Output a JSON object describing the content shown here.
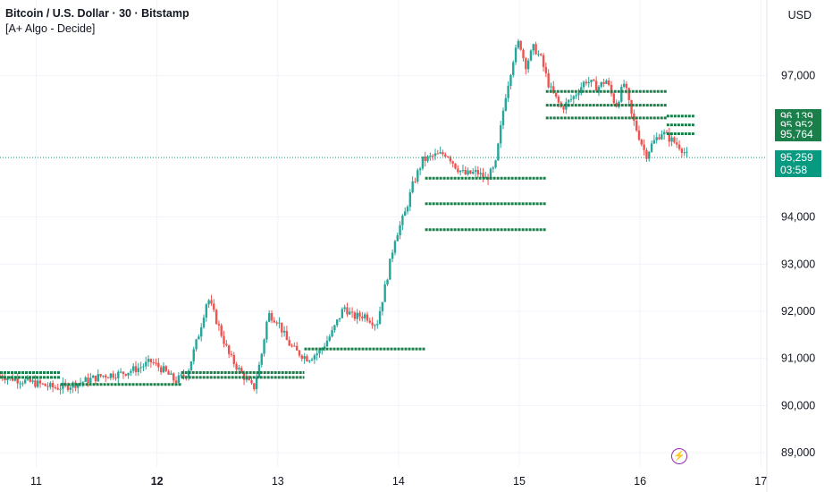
{
  "header": {
    "title": "Bitcoin / U.S. Dollar · 30 · Bitstamp",
    "indicator": "[A+ Algo - Decide]",
    "currency": "USD"
  },
  "colors": {
    "up": "#26a69a",
    "down": "#ef5350",
    "level": "#1b7f4b",
    "last_price": "#089981",
    "grid": "#f0f3fa",
    "text": "#131722"
  },
  "icons": [
    "flash-icon"
  ],
  "chart_data": {
    "type": "candlestick",
    "title": "Bitcoin / U.S. Dollar · 30 · Bitstamp",
    "x_ticks": [
      "11",
      "12",
      "13",
      "14",
      "15",
      "16",
      "17"
    ],
    "y_ticks": [
      "89,000",
      "90,000",
      "91,000",
      "92,000",
      "93,000",
      "94,000",
      "97,000"
    ],
    "ylim": [
      88700,
      98600
    ],
    "xlim": [
      10.7,
      17.05
    ],
    "last_price": {
      "value": "95,259",
      "countdown": "03:58"
    },
    "level_tags": [
      "96,139",
      "95,952",
      "95,764"
    ],
    "price_path": [
      [
        10.7,
        90640
      ],
      [
        10.85,
        90550
      ],
      [
        11.0,
        90470
      ],
      [
        11.15,
        90380
      ],
      [
        11.25,
        90410
      ],
      [
        11.4,
        90520
      ],
      [
        11.55,
        90640
      ],
      [
        11.7,
        90680
      ],
      [
        11.85,
        90800
      ],
      [
        11.95,
        90930
      ],
      [
        12.05,
        90760
      ],
      [
        12.15,
        90520
      ],
      [
        12.25,
        90680
      ],
      [
        12.35,
        91550
      ],
      [
        12.42,
        92300
      ],
      [
        12.5,
        91750
      ],
      [
        12.6,
        91050
      ],
      [
        12.7,
        90680
      ],
      [
        12.8,
        90350
      ],
      [
        12.86,
        91000
      ],
      [
        12.92,
        91950
      ],
      [
        13.0,
        91800
      ],
      [
        13.08,
        91350
      ],
      [
        13.15,
        91150
      ],
      [
        13.25,
        91000
      ],
      [
        13.35,
        91150
      ],
      [
        13.45,
        91550
      ],
      [
        13.55,
        92100
      ],
      [
        13.62,
        91880
      ],
      [
        13.72,
        91920
      ],
      [
        13.82,
        91720
      ],
      [
        13.9,
        92650
      ],
      [
        13.97,
        93550
      ],
      [
        14.05,
        94050
      ],
      [
        14.12,
        94700
      ],
      [
        14.2,
        95200
      ],
      [
        14.3,
        95300
      ],
      [
        14.4,
        95350
      ],
      [
        14.48,
        95050
      ],
      [
        14.55,
        94900
      ],
      [
        14.65,
        94950
      ],
      [
        14.72,
        94800
      ],
      [
        14.8,
        95050
      ],
      [
        14.88,
        96500
      ],
      [
        14.95,
        97350
      ],
      [
        15.0,
        97750
      ],
      [
        15.05,
        97200
      ],
      [
        15.12,
        97600
      ],
      [
        15.18,
        97350
      ],
      [
        15.25,
        96750
      ],
      [
        15.35,
        96300
      ],
      [
        15.45,
        96550
      ],
      [
        15.55,
        96900
      ],
      [
        15.65,
        96750
      ],
      [
        15.72,
        96900
      ],
      [
        15.8,
        96350
      ],
      [
        15.87,
        96850
      ],
      [
        15.93,
        96150
      ],
      [
        16.0,
        95650
      ],
      [
        16.05,
        95300
      ],
      [
        16.1,
        95550
      ],
      [
        16.18,
        95800
      ],
      [
        16.25,
        95650
      ],
      [
        16.33,
        95500
      ],
      [
        16.4,
        95259
      ]
    ],
    "levels": [
      {
        "price": 90700,
        "x0": 10.7,
        "x1": 11.2
      },
      {
        "price": 90600,
        "x0": 10.7,
        "x1": 11.2
      },
      {
        "price": 90450,
        "x0": 11.2,
        "x1": 12.2
      },
      {
        "price": 90700,
        "x0": 12.2,
        "x1": 13.22
      },
      {
        "price": 90600,
        "x0": 12.2,
        "x1": 13.22
      },
      {
        "price": 91200,
        "x0": 13.22,
        "x1": 14.22
      },
      {
        "price": 94820,
        "x0": 14.22,
        "x1": 15.22
      },
      {
        "price": 94280,
        "x0": 14.22,
        "x1": 15.22
      },
      {
        "price": 93730,
        "x0": 14.22,
        "x1": 15.22
      },
      {
        "price": 96660,
        "x0": 15.22,
        "x1": 16.22
      },
      {
        "price": 96370,
        "x0": 15.22,
        "x1": 16.22
      },
      {
        "price": 96100,
        "x0": 15.22,
        "x1": 16.22
      },
      {
        "price": 96139,
        "x0": 16.22,
        "x1": 16.45
      },
      {
        "price": 95952,
        "x0": 16.22,
        "x1": 16.45
      },
      {
        "price": 95764,
        "x0": 16.22,
        "x1": 16.45
      }
    ]
  }
}
